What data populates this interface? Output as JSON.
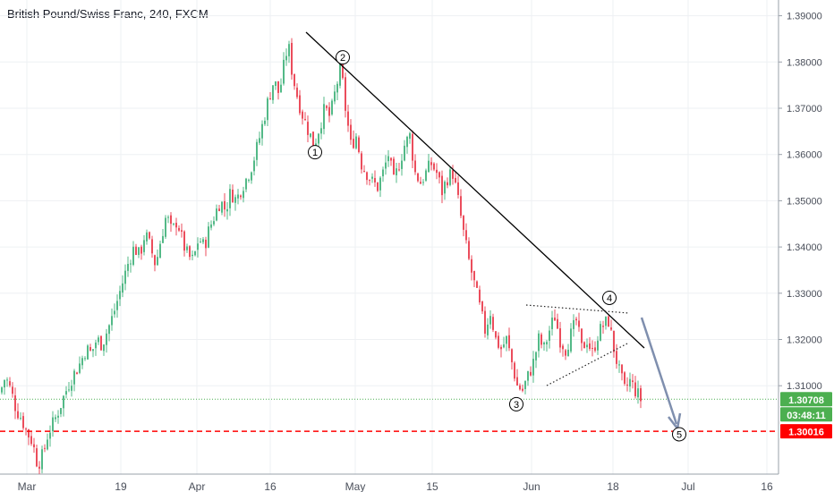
{
  "title": "British Pound/Swiss Franc, 240, FXCM",
  "chart_data": {
    "type": "candlestick",
    "symbol": "British Pound/Swiss Franc",
    "interval": "240",
    "source": "FXCM",
    "ylim": [
      1.29,
      1.392
    ],
    "y_ticks": [
      "1.39000",
      "1.38000",
      "1.37000",
      "1.36000",
      "1.35000",
      "1.34000",
      "1.33000",
      "1.32000",
      "1.31000"
    ],
    "x_ticks": [
      "Mar",
      "19",
      "Apr",
      "16",
      "May",
      "15",
      "Jun",
      "18",
      "Jul",
      "16"
    ],
    "price_path": [
      [
        0,
        1.3085
      ],
      [
        6,
        1.312
      ],
      [
        12,
        1.309
      ],
      [
        18,
        1.305
      ],
      [
        24,
        1.303
      ],
      [
        30,
        1.3
      ],
      [
        36,
        1.298
      ],
      [
        42,
        1.293
      ],
      [
        48,
        1.295
      ],
      [
        54,
        1.3
      ],
      [
        60,
        1.302
      ],
      [
        66,
        1.305
      ],
      [
        72,
        1.308
      ],
      [
        78,
        1.311
      ],
      [
        84,
        1.313
      ],
      [
        90,
        1.315
      ],
      [
        96,
        1.318
      ],
      [
        102,
        1.317
      ],
      [
        108,
        1.32
      ],
      [
        114,
        1.319
      ],
      [
        120,
        1.322
      ],
      [
        126,
        1.325
      ],
      [
        132,
        1.329
      ],
      [
        138,
        1.333
      ],
      [
        144,
        1.337
      ],
      [
        150,
        1.34
      ],
      [
        156,
        1.338
      ],
      [
        162,
        1.343
      ],
      [
        168,
        1.34
      ],
      [
        174,
        1.336
      ],
      [
        180,
        1.342
      ],
      [
        186,
        1.347
      ],
      [
        192,
        1.343
      ],
      [
        198,
        1.346
      ],
      [
        204,
        1.341
      ],
      [
        210,
        1.338
      ],
      [
        216,
        1.337
      ],
      [
        222,
        1.342
      ],
      [
        228,
        1.34
      ],
      [
        234,
        1.344
      ],
      [
        240,
        1.347
      ],
      [
        246,
        1.35
      ],
      [
        252,
        1.348
      ],
      [
        258,
        1.352
      ],
      [
        264,
        1.35
      ],
      [
        270,
        1.353
      ],
      [
        276,
        1.355
      ],
      [
        282,
        1.358
      ],
      [
        288,
        1.362
      ],
      [
        294,
        1.367
      ],
      [
        300,
        1.372
      ],
      [
        306,
        1.376
      ],
      [
        312,
        1.373
      ],
      [
        318,
        1.38
      ],
      [
        322,
        1.384
      ],
      [
        327,
        1.377
      ],
      [
        333,
        1.372
      ],
      [
        339,
        1.368
      ],
      [
        345,
        1.365
      ],
      [
        351,
        1.362
      ],
      [
        357,
        1.366
      ],
      [
        363,
        1.37
      ],
      [
        369,
        1.368
      ],
      [
        375,
        1.374
      ],
      [
        381,
        1.379
      ],
      [
        386,
        1.37
      ],
      [
        392,
        1.362
      ],
      [
        398,
        1.364
      ],
      [
        404,
        1.358
      ],
      [
        410,
        1.356
      ],
      [
        416,
        1.354
      ],
      [
        422,
        1.353
      ],
      [
        428,
        1.356
      ],
      [
        434,
        1.36
      ],
      [
        440,
        1.354
      ],
      [
        446,
        1.358
      ],
      [
        452,
        1.362
      ],
      [
        458,
        1.364
      ],
      [
        464,
        1.356
      ],
      [
        470,
        1.354
      ],
      [
        476,
        1.356
      ],
      [
        482,
        1.358
      ],
      [
        488,
        1.356
      ],
      [
        494,
        1.352
      ],
      [
        500,
        1.355
      ],
      [
        506,
        1.356
      ],
      [
        512,
        1.35
      ],
      [
        518,
        1.343
      ],
      [
        524,
        1.337
      ],
      [
        530,
        1.332
      ],
      [
        536,
        1.327
      ],
      [
        542,
        1.322
      ],
      [
        548,
        1.326
      ],
      [
        554,
        1.32
      ],
      [
        560,
        1.318
      ],
      [
        566,
        1.32
      ],
      [
        572,
        1.315
      ],
      [
        578,
        1.31
      ],
      [
        584,
        1.309
      ],
      [
        590,
        1.312
      ],
      [
        596,
        1.315
      ],
      [
        602,
        1.32
      ],
      [
        608,
        1.318
      ],
      [
        614,
        1.322
      ],
      [
        620,
        1.325
      ],
      [
        626,
        1.32
      ],
      [
        632,
        1.318
      ],
      [
        638,
        1.321
      ],
      [
        644,
        1.324
      ],
      [
        650,
        1.318
      ],
      [
        656,
        1.32
      ],
      [
        662,
        1.317
      ],
      [
        668,
        1.321
      ],
      [
        674,
        1.323
      ],
      [
        680,
        1.324
      ],
      [
        686,
        1.318
      ],
      [
        692,
        1.313
      ],
      [
        698,
        1.309
      ],
      [
        704,
        1.311
      ],
      [
        710,
        1.309
      ],
      [
        716,
        1.307
      ]
    ],
    "current_price": "1.30708",
    "countdown": "03:48:11",
    "level_price": "1.30016",
    "wave_labels": [
      "1",
      "2",
      "3",
      "4",
      "5"
    ],
    "annotations": [
      {
        "label": "1",
        "price": 1.3605
      },
      {
        "label": "2",
        "price": 1.381
      },
      {
        "label": "3",
        "price": 1.306
      },
      {
        "label": "4",
        "price": 1.329
      },
      {
        "label": "5",
        "price": 1.2995
      }
    ],
    "colors": {
      "up": "#53b987",
      "down": "#eb4d5c",
      "current": "#4caf50",
      "level": "#ff0000",
      "trend": "#000000",
      "arrow": "#7f8fae"
    }
  }
}
